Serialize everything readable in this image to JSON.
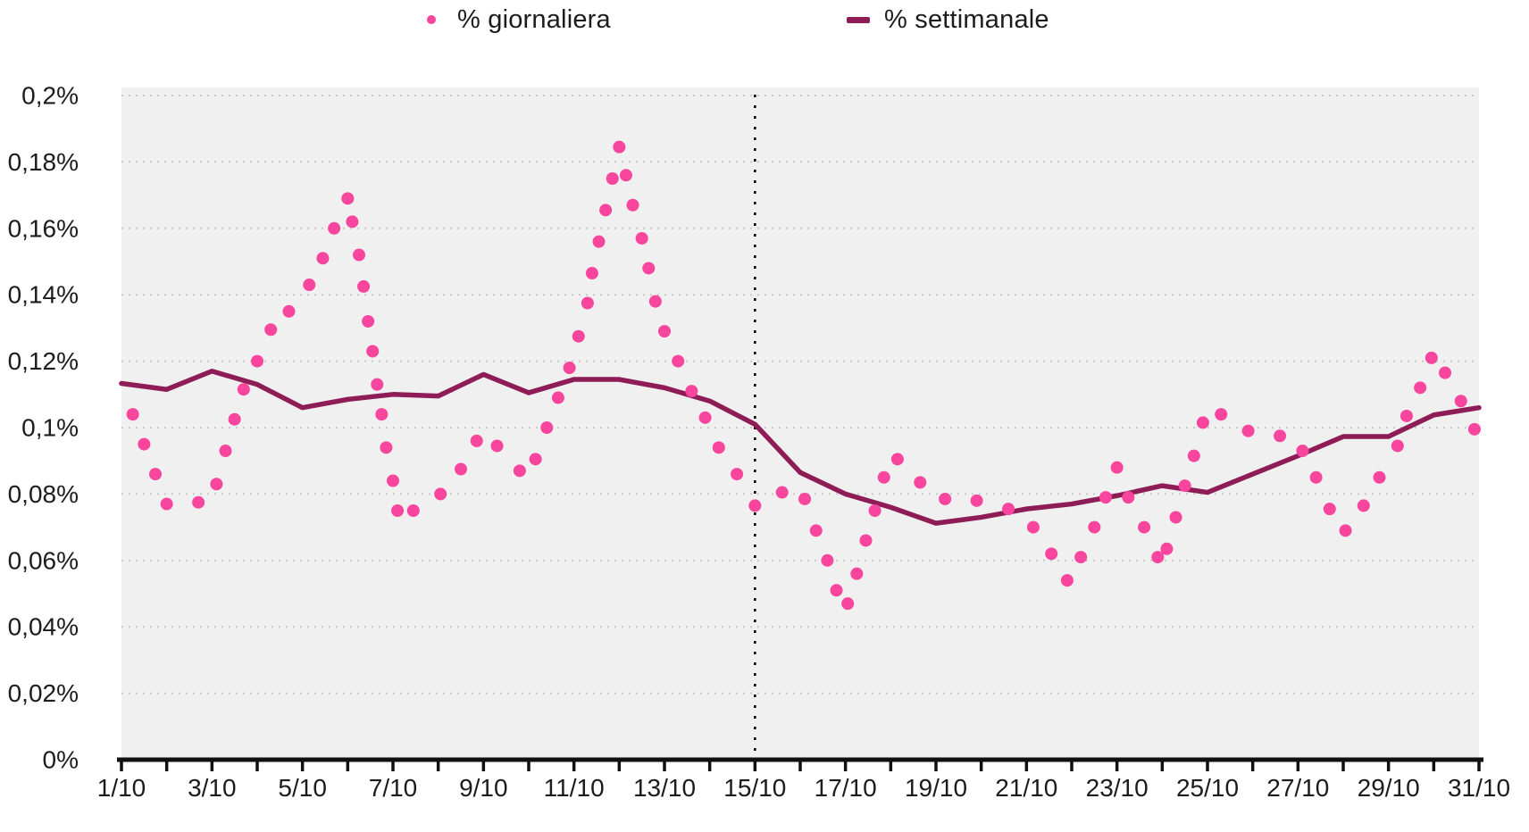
{
  "chart_data": {
    "type": "scatter",
    "title": "",
    "legend": [
      {
        "label": "% giornaliera",
        "marker": "dot-icon",
        "color": "#F8459D"
      },
      {
        "label": "% settimanale",
        "marker": "line-icon",
        "color": "#8E1C56"
      }
    ],
    "x_axis": {
      "tick_labels": [
        "1/10",
        "3/10",
        "5/10",
        "7/10",
        "9/10",
        "11/10",
        "13/10",
        "15/10",
        "17/10",
        "19/10",
        "21/10",
        "23/10",
        "25/10",
        "27/10",
        "29/10",
        "31/10"
      ],
      "labeled_days": [
        1,
        3,
        5,
        7,
        9,
        11,
        13,
        15,
        17,
        19,
        21,
        23,
        25,
        27,
        29,
        31
      ],
      "range_days": [
        1,
        31
      ],
      "minor_tick_every_day": 1
    },
    "y_axis": {
      "tick_labels": [
        "0%",
        "0,02%",
        "0,04%",
        "0,06%",
        "0,08%",
        "0,1%",
        "0,12%",
        "0,14%",
        "0,16%",
        "0,18%",
        "0,2%"
      ],
      "tick_values_percent": [
        0,
        0.02,
        0.04,
        0.06,
        0.08,
        0.1,
        0.12,
        0.14,
        0.16,
        0.18,
        0.2
      ],
      "range_percent": [
        0,
        0.2
      ],
      "grid": true
    },
    "annotations": [
      {
        "type": "vline",
        "x_day": 15,
        "style": "dotted",
        "color": "#000000"
      }
    ],
    "series": [
      {
        "name": "% giornaliera",
        "type": "scatter",
        "color": "#F8459D",
        "points_day_percent": [
          [
            1.25,
            0.104
          ],
          [
            1.5,
            0.095
          ],
          [
            1.75,
            0.086
          ],
          [
            2.0,
            0.077
          ],
          [
            2.7,
            0.0775
          ],
          [
            3.1,
            0.083
          ],
          [
            3.3,
            0.093
          ],
          [
            3.5,
            0.1025
          ],
          [
            3.7,
            0.1115
          ],
          [
            4.0,
            0.12
          ],
          [
            4.3,
            0.1295
          ],
          [
            4.7,
            0.135
          ],
          [
            5.15,
            0.143
          ],
          [
            5.45,
            0.151
          ],
          [
            5.7,
            0.16
          ],
          [
            6.0,
            0.169
          ],
          [
            6.1,
            0.162
          ],
          [
            6.25,
            0.152
          ],
          [
            6.35,
            0.1425
          ],
          [
            6.45,
            0.132
          ],
          [
            6.55,
            0.123
          ],
          [
            6.65,
            0.113
          ],
          [
            6.75,
            0.104
          ],
          [
            6.85,
            0.094
          ],
          [
            7.0,
            0.084
          ],
          [
            7.1,
            0.075
          ],
          [
            7.45,
            0.075
          ],
          [
            8.05,
            0.08
          ],
          [
            8.5,
            0.0875
          ],
          [
            8.85,
            0.096
          ],
          [
            9.3,
            0.0945
          ],
          [
            9.8,
            0.087
          ],
          [
            10.15,
            0.0905
          ],
          [
            10.4,
            0.1
          ],
          [
            10.65,
            0.109
          ],
          [
            10.9,
            0.118
          ],
          [
            11.1,
            0.1275
          ],
          [
            11.3,
            0.1375
          ],
          [
            11.4,
            0.1465
          ],
          [
            11.55,
            0.156
          ],
          [
            11.7,
            0.1655
          ],
          [
            11.85,
            0.175
          ],
          [
            12.0,
            0.1845
          ],
          [
            12.15,
            0.176
          ],
          [
            12.3,
            0.167
          ],
          [
            12.5,
            0.157
          ],
          [
            12.65,
            0.148
          ],
          [
            12.8,
            0.138
          ],
          [
            13.0,
            0.129
          ],
          [
            13.3,
            0.12
          ],
          [
            13.6,
            0.111
          ],
          [
            13.9,
            0.103
          ],
          [
            14.2,
            0.094
          ],
          [
            14.6,
            0.086
          ],
          [
            15.0,
            0.0765
          ],
          [
            15.6,
            0.0805
          ],
          [
            16.1,
            0.0785
          ],
          [
            16.35,
            0.069
          ],
          [
            16.6,
            0.06
          ],
          [
            16.8,
            0.051
          ],
          [
            17.05,
            0.047
          ],
          [
            17.25,
            0.056
          ],
          [
            17.45,
            0.066
          ],
          [
            17.65,
            0.075
          ],
          [
            17.85,
            0.085
          ],
          [
            18.15,
            0.0905
          ],
          [
            18.65,
            0.0835
          ],
          [
            19.2,
            0.0785
          ],
          [
            19.9,
            0.078
          ],
          [
            20.6,
            0.0755
          ],
          [
            21.15,
            0.07
          ],
          [
            21.55,
            0.062
          ],
          [
            21.9,
            0.054
          ],
          [
            22.2,
            0.061
          ],
          [
            22.5,
            0.07
          ],
          [
            22.75,
            0.079
          ],
          [
            23.0,
            0.088
          ],
          [
            23.25,
            0.079
          ],
          [
            23.6,
            0.07
          ],
          [
            23.9,
            0.061
          ],
          [
            24.1,
            0.0635
          ],
          [
            24.3,
            0.073
          ],
          [
            24.5,
            0.0825
          ],
          [
            24.7,
            0.0915
          ],
          [
            24.9,
            0.1015
          ],
          [
            25.3,
            0.104
          ],
          [
            25.9,
            0.099
          ],
          [
            26.6,
            0.0975
          ],
          [
            27.1,
            0.093
          ],
          [
            27.4,
            0.085
          ],
          [
            27.7,
            0.0755
          ],
          [
            28.05,
            0.069
          ],
          [
            28.45,
            0.0765
          ],
          [
            28.8,
            0.085
          ],
          [
            29.2,
            0.0945
          ],
          [
            29.4,
            0.1035
          ],
          [
            29.7,
            0.112
          ],
          [
            29.95,
            0.121
          ],
          [
            30.25,
            0.1165
          ],
          [
            30.6,
            0.108
          ],
          [
            30.9,
            0.0995
          ]
        ]
      },
      {
        "name": "% settimanale",
        "type": "line",
        "color": "#8E1C56",
        "days": [
          1,
          2,
          3,
          4,
          5,
          6,
          7,
          8,
          9,
          10,
          11,
          12,
          13,
          14,
          15,
          16,
          17,
          18,
          19,
          20,
          21,
          22,
          23,
          24,
          25,
          26,
          27,
          28,
          29,
          30,
          31
        ],
        "values_percent": [
          0.1133,
          0.1115,
          0.117,
          0.113,
          0.106,
          0.1085,
          0.11,
          0.1095,
          0.116,
          0.1105,
          0.1145,
          0.1145,
          0.112,
          0.108,
          0.101,
          0.0865,
          0.08,
          0.076,
          0.0712,
          0.073,
          0.0755,
          0.077,
          0.0795,
          0.0825,
          0.0805,
          0.086,
          0.0915,
          0.0973,
          0.0973,
          0.1038,
          0.106
        ]
      }
    ],
    "colors": {
      "plot_background": "#F0F0F0",
      "gridline": "#C9C9C9",
      "axis": "#111111",
      "text": "#1C1C1C"
    }
  }
}
